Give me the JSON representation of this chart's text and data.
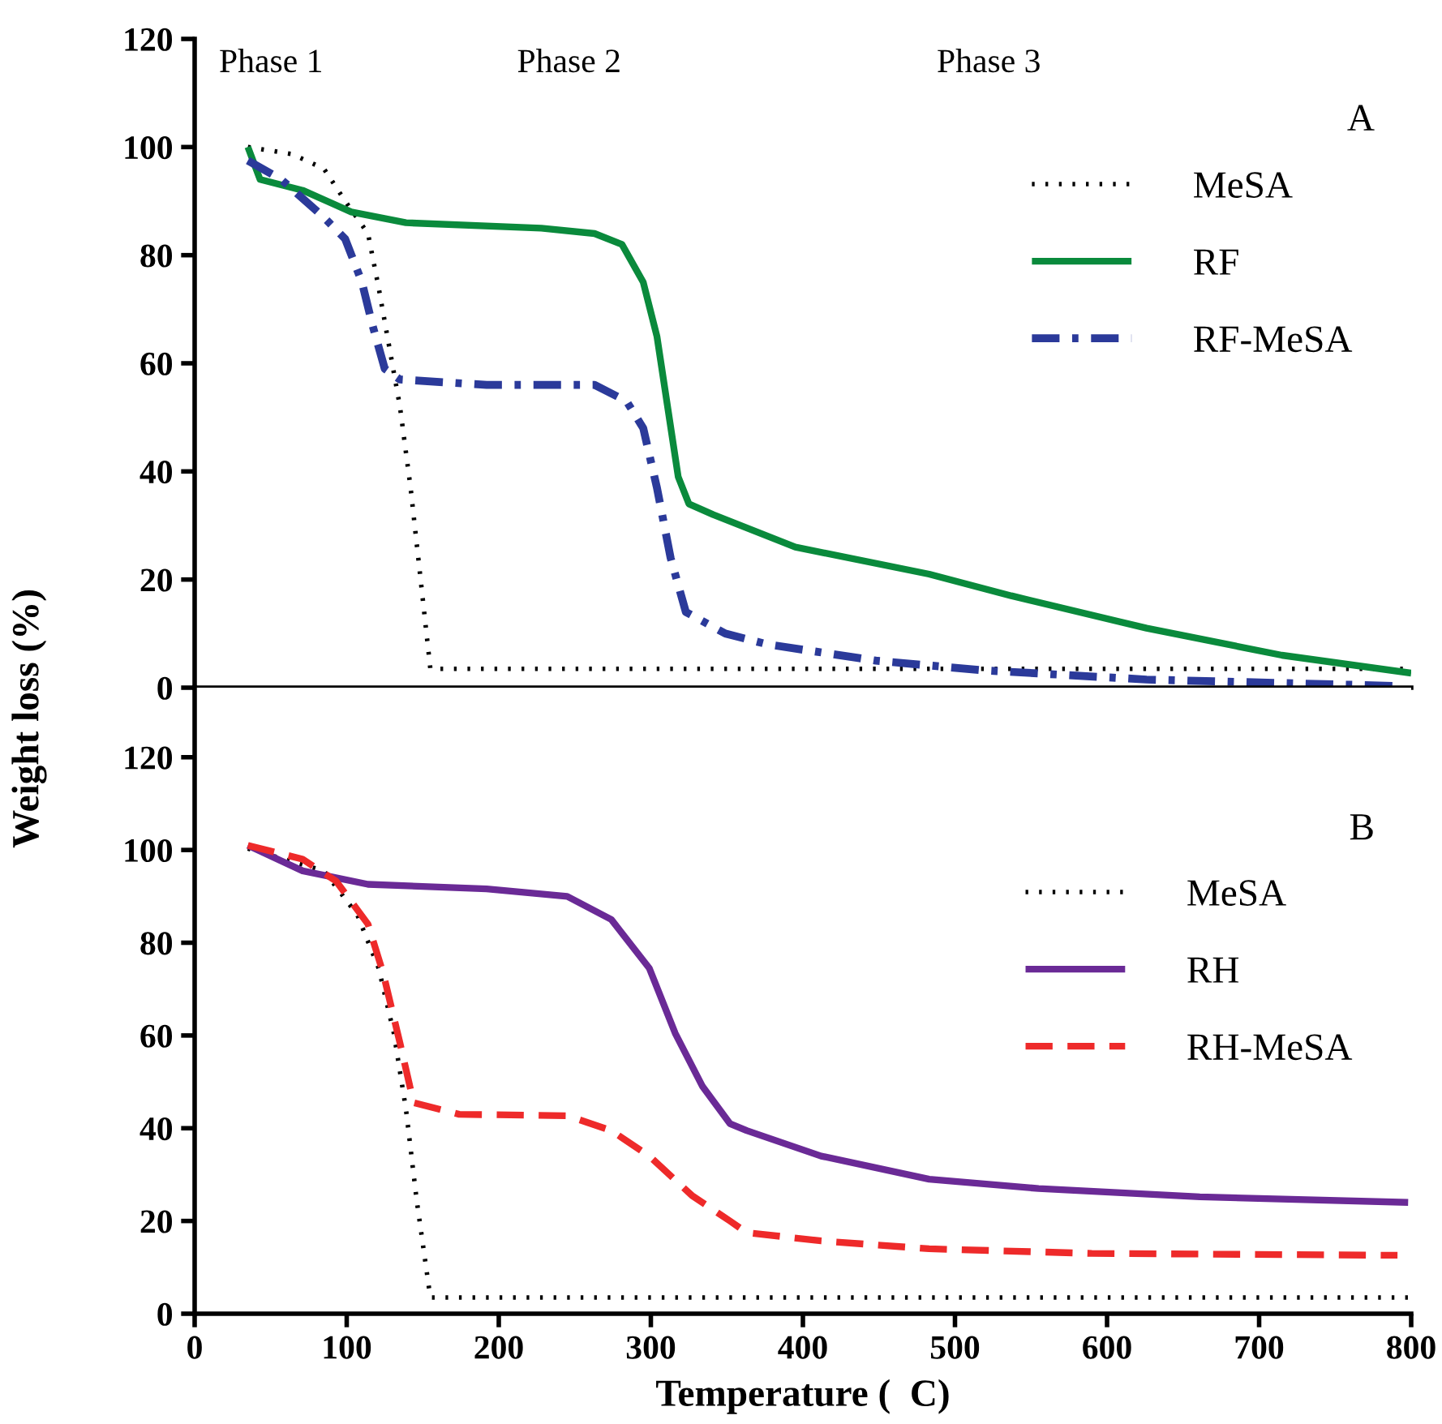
{
  "chart_data": [
    {
      "type": "line",
      "ylabel": "Weight loss (%)",
      "xlim": [
        0,
        800
      ],
      "ylim": [
        0,
        120
      ],
      "yticks": [
        0,
        20,
        40,
        60,
        80,
        100,
        120
      ],
      "tick_labels": "y",
      "grid": false,
      "legend": "top right",
      "annotations": [
        "Phase 1",
        "Phase 2",
        "Phase 3",
        "A"
      ],
      "series": [
        {
          "name": "MeSA",
          "color": "#000000",
          "line_style": "dotted",
          "x": [
            35,
            64,
            85,
            99,
            114,
            121,
            128,
            135,
            142,
            149,
            155,
            800
          ],
          "values": [
            100,
            98.7,
            96,
            90,
            84,
            74,
            63,
            52,
            37,
            19,
            3.5,
            3.5
          ]
        },
        {
          "name": "RF",
          "color": "#0a8a3c",
          "line_style": "solid",
          "x": [
            35,
            43,
            71,
            103,
            139,
            228,
            263,
            281,
            295,
            304,
            311,
            318,
            325,
            341,
            395,
            483,
            537,
            626,
            715,
            800
          ],
          "values": [
            100,
            94,
            92,
            88,
            86,
            85,
            84,
            82,
            75,
            65,
            52,
            39,
            34,
            32,
            26,
            21,
            17,
            11,
            6,
            2.7
          ]
        },
        {
          "name": "RF-MeSA",
          "color": "#2b3a9a",
          "line_style": "dashdot",
          "x": [
            35,
            57,
            85,
            99,
            110,
            117,
            125,
            135,
            192,
            263,
            284,
            295,
            304,
            313,
            323,
            349,
            377,
            448,
            519,
            626,
            793
          ],
          "values": [
            97.5,
            94,
            87,
            83,
            75,
            67,
            59,
            57,
            56,
            56,
            53,
            48,
            37,
            24,
            14,
            10,
            8,
            5,
            3.2,
            1.5,
            0.3
          ]
        }
      ]
    },
    {
      "type": "line",
      "xlabel": "Temperature (  C)",
      "xlim": [
        0,
        800
      ],
      "xticks": [
        0,
        100,
        200,
        300,
        400,
        500,
        600,
        700,
        800
      ],
      "ylim": [
        0,
        135
      ],
      "yticks": [
        0,
        20,
        40,
        60,
        80,
        100,
        120
      ],
      "grid": false,
      "legend": "top right",
      "annotations": [
        "B"
      ],
      "series": [
        {
          "name": "MeSA",
          "color": "#000000",
          "line_style": "dotted",
          "x": [
            35,
            85,
            107,
            121,
            131,
            139,
            146,
            155,
            800
          ],
          "values": [
            100.3,
            95.5,
            86,
            74.5,
            60.5,
            44,
            24.5,
            3.5,
            3.5
          ]
        },
        {
          "name": "RH",
          "color": "#6a2a96",
          "line_style": "solid",
          "x": [
            35,
            71,
            114,
            192,
            245,
            274,
            299,
            316,
            334,
            352,
            363,
            412,
            483,
            555,
            661,
            798
          ],
          "values": [
            101,
            95.5,
            92.6,
            91.6,
            90,
            85,
            74.5,
            60.5,
            49,
            41,
            39.5,
            34,
            29,
            27,
            25.2,
            24
          ]
        },
        {
          "name": "RH-MeSA",
          "color": "#ee2a2a",
          "line_style": "dashed",
          "x": [
            35,
            71,
            93,
            114,
            124,
            135,
            144,
            174,
            245,
            274,
            299,
            327,
            352,
            363,
            412,
            483,
            590,
            791
          ],
          "values": [
            101,
            98,
            93.3,
            84,
            73.4,
            58.4,
            45.5,
            43,
            42.7,
            39.5,
            34,
            25.5,
            20,
            17.5,
            15.7,
            14,
            13,
            12.6
          ]
        }
      ]
    }
  ]
}
